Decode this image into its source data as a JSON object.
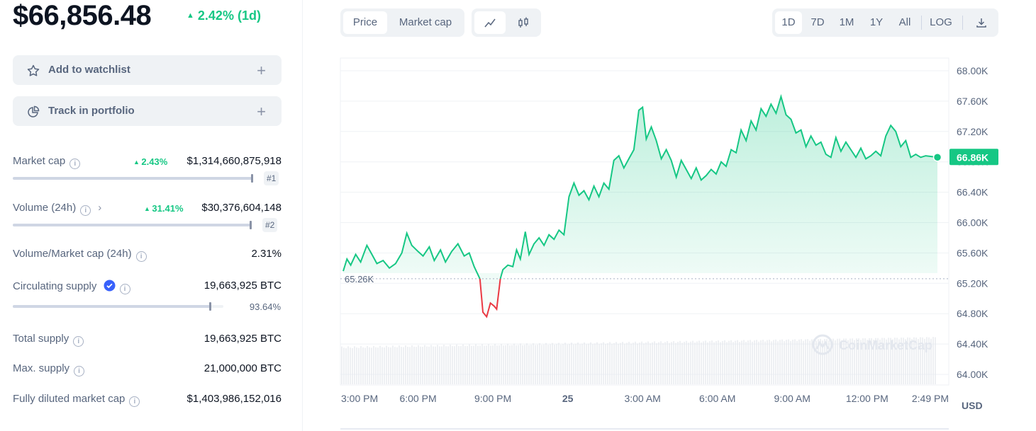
{
  "summary": {
    "price": "$66,856.48",
    "change": "2.42% (1d)"
  },
  "actions": {
    "watchlist": "Add to watchlist",
    "portfolio": "Track in portfolio",
    "plus": "+"
  },
  "stats": {
    "market_cap": {
      "label": "Market cap",
      "change": "2.43%",
      "value": "$1,314,660,875,918",
      "rank": "#1"
    },
    "volume": {
      "label": "Volume (24h)",
      "change": "31.41%",
      "value": "$30,376,604,148",
      "rank": "#2"
    },
    "vol_mcap": {
      "label": "Volume/Market cap (24h)",
      "value": "2.31%"
    },
    "circulating": {
      "label": "Circulating supply",
      "value": "19,663,925 BTC",
      "percent": "93.64%",
      "fraction": 0.9364
    },
    "total": {
      "label": "Total supply",
      "value": "19,663,925 BTC"
    },
    "max": {
      "label": "Max. supply",
      "value": "21,000,000 BTC"
    },
    "fdmc": {
      "label": "Fully diluted market cap",
      "value": "$1,403,986,152,016"
    }
  },
  "toolbar": {
    "price": "Price",
    "market_cap": "Market cap",
    "ranges": [
      "1D",
      "7D",
      "1M",
      "1Y",
      "All"
    ],
    "log": "LOG"
  },
  "colors": {
    "up": "#16c784",
    "down": "#ea3943",
    "text": "#58667e"
  },
  "icons": [
    "star-icon",
    "pie-chart-icon",
    "info-icon",
    "chevron-right-icon",
    "verified-check-icon",
    "line-chart-icon",
    "candlestick-icon",
    "download-icon"
  ],
  "chart_data": {
    "type": "line",
    "currency": "USD",
    "watermark": "CoinMarketCap",
    "reference_label": "65.26K",
    "reference_value": 65.26,
    "current_label": "66.86K",
    "current_value": 66.86,
    "ylim": [
      63.9,
      68.05
    ],
    "yticks": [
      "68.00K",
      "67.60K",
      "67.20K",
      "66.80K",
      "66.40K",
      "66.00K",
      "65.60K",
      "65.20K",
      "64.80K",
      "64.40K",
      "64.00K"
    ],
    "ytick_values": [
      68.0,
      67.6,
      67.2,
      66.8,
      66.4,
      66.0,
      65.6,
      65.2,
      64.8,
      64.4,
      64.0
    ],
    "xticks": [
      "3:00 PM",
      "6:00 PM",
      "9:00 PM",
      "25",
      "3:00 AM",
      "6:00 AM",
      "9:00 AM",
      "12:00 PM",
      "2:49 PM"
    ],
    "xtick_hours": [
      0,
      3,
      6,
      9,
      12,
      15,
      18,
      21,
      23.82
    ],
    "xlim": [
      -0.1,
      23.9
    ],
    "series": [
      {
        "values": [
          [
            0,
            65.36
          ],
          [
            0.15,
            65.52
          ],
          [
            0.3,
            65.44
          ],
          [
            0.5,
            65.58
          ],
          [
            0.7,
            65.48
          ],
          [
            0.95,
            65.7
          ],
          [
            1.15,
            65.58
          ],
          [
            1.35,
            65.46
          ],
          [
            1.6,
            65.5
          ],
          [
            1.85,
            65.4
          ],
          [
            2.1,
            65.46
          ],
          [
            2.35,
            65.6
          ],
          [
            2.55,
            65.86
          ],
          [
            2.75,
            65.7
          ],
          [
            3.0,
            65.62
          ],
          [
            3.2,
            65.56
          ],
          [
            3.45,
            65.68
          ],
          [
            3.65,
            65.5
          ],
          [
            3.9,
            65.64
          ],
          [
            4.1,
            65.48
          ],
          [
            4.35,
            65.62
          ],
          [
            4.6,
            65.72
          ],
          [
            4.85,
            65.56
          ],
          [
            5.05,
            65.6
          ],
          [
            5.25,
            65.42
          ],
          [
            5.45,
            65.28
          ],
          [
            5.48,
            65.26
          ],
          [
            5.6,
            64.82
          ],
          [
            5.75,
            64.76
          ],
          [
            5.9,
            64.94
          ],
          [
            6.05,
            64.9
          ],
          [
            6.15,
            64.86
          ],
          [
            6.3,
            65.26
          ],
          [
            6.4,
            65.38
          ],
          [
            6.6,
            65.44
          ],
          [
            6.8,
            65.42
          ],
          [
            6.95,
            65.64
          ],
          [
            7.1,
            65.52
          ],
          [
            7.3,
            65.88
          ],
          [
            7.45,
            65.58
          ],
          [
            7.65,
            65.72
          ],
          [
            7.85,
            65.8
          ],
          [
            8.05,
            65.7
          ],
          [
            8.25,
            65.84
          ],
          [
            8.45,
            65.78
          ],
          [
            8.65,
            65.9
          ],
          [
            8.85,
            65.84
          ],
          [
            9.05,
            66.34
          ],
          [
            9.25,
            66.52
          ],
          [
            9.45,
            66.36
          ],
          [
            9.65,
            66.42
          ],
          [
            9.85,
            66.3
          ],
          [
            10.05,
            66.48
          ],
          [
            10.25,
            66.34
          ],
          [
            10.45,
            66.52
          ],
          [
            10.65,
            66.44
          ],
          [
            10.85,
            66.82
          ],
          [
            11.05,
            66.88
          ],
          [
            11.25,
            66.72
          ],
          [
            11.45,
            66.84
          ],
          [
            11.65,
            66.96
          ],
          [
            11.85,
            67.48
          ],
          [
            12.0,
            67.52
          ],
          [
            12.15,
            67.1
          ],
          [
            12.35,
            67.26
          ],
          [
            12.55,
            67.08
          ],
          [
            12.75,
            66.84
          ],
          [
            12.95,
            66.96
          ],
          [
            13.15,
            66.82
          ],
          [
            13.35,
            66.6
          ],
          [
            13.55,
            66.82
          ],
          [
            13.75,
            66.7
          ],
          [
            13.95,
            66.58
          ],
          [
            14.15,
            66.72
          ],
          [
            14.35,
            66.56
          ],
          [
            14.55,
            66.62
          ],
          [
            14.75,
            66.7
          ],
          [
            14.95,
            66.64
          ],
          [
            15.15,
            66.8
          ],
          [
            15.35,
            66.74
          ],
          [
            15.55,
            66.96
          ],
          [
            15.75,
            66.92
          ],
          [
            15.95,
            67.22
          ],
          [
            16.15,
            67.08
          ],
          [
            16.35,
            67.34
          ],
          [
            16.55,
            67.22
          ],
          [
            16.75,
            67.5
          ],
          [
            16.95,
            67.4
          ],
          [
            17.15,
            67.56
          ],
          [
            17.35,
            67.44
          ],
          [
            17.55,
            67.66
          ],
          [
            17.75,
            67.42
          ],
          [
            17.95,
            67.36
          ],
          [
            18.15,
            67.18
          ],
          [
            18.35,
            67.22
          ],
          [
            18.55,
            67.0
          ],
          [
            18.75,
            67.14
          ],
          [
            18.95,
            67.02
          ],
          [
            19.15,
            67.06
          ],
          [
            19.35,
            66.9
          ],
          [
            19.55,
            66.86
          ],
          [
            19.75,
            67.12
          ],
          [
            19.95,
            66.94
          ],
          [
            20.15,
            67.06
          ],
          [
            20.35,
            66.96
          ],
          [
            20.55,
            66.86
          ],
          [
            20.75,
            66.98
          ],
          [
            20.95,
            66.84
          ],
          [
            21.15,
            66.88
          ],
          [
            21.35,
            66.94
          ],
          [
            21.55,
            66.88
          ],
          [
            21.75,
            67.14
          ],
          [
            21.95,
            67.28
          ],
          [
            22.15,
            67.2
          ],
          [
            22.35,
            67.0
          ],
          [
            22.55,
            67.08
          ],
          [
            22.75,
            66.86
          ],
          [
            22.95,
            66.9
          ],
          [
            23.15,
            66.86
          ],
          [
            23.35,
            66.88
          ],
          [
            23.82,
            66.86
          ]
        ]
      }
    ]
  }
}
